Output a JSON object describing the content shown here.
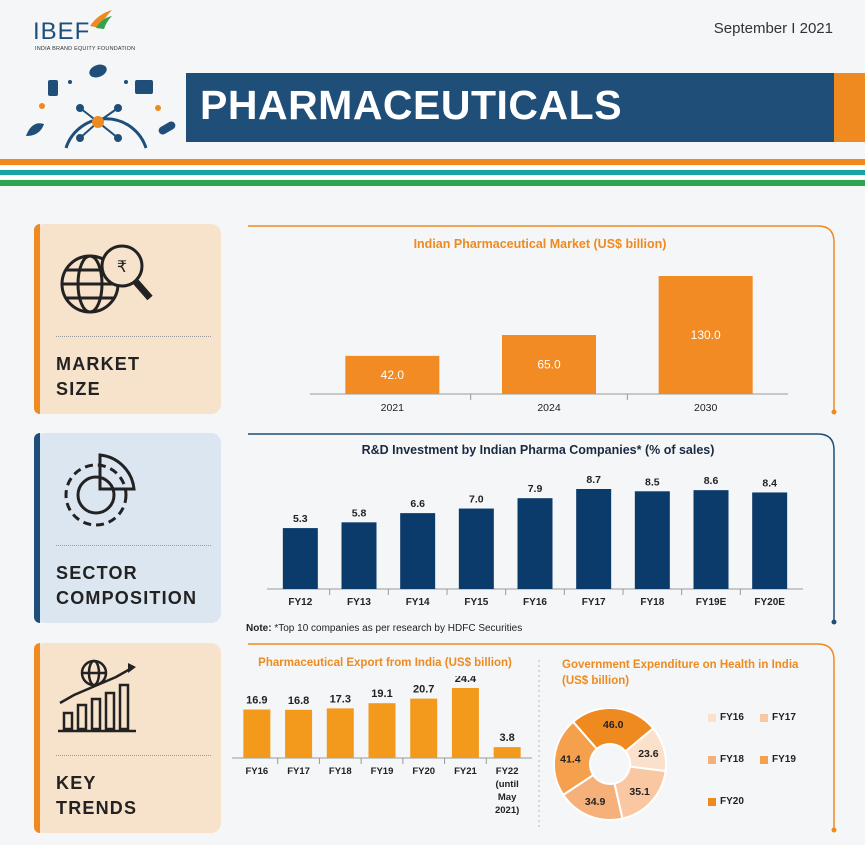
{
  "header": {
    "logo_text": "IBEF",
    "logo_subtext": "INDIA BRAND EQUITY FOUNDATION",
    "date": "September  I  2021",
    "title": "PHARMACEUTICALS"
  },
  "colors": {
    "navy": "#1f4e79",
    "orange": "#ee8a1f",
    "green": "#2ea44f",
    "teal": "#1aa3a3"
  },
  "sections": [
    {
      "label_line1": "MARKET",
      "label_line2": "SIZE",
      "icon": "globe-rupee-magnifier-icon"
    },
    {
      "label_line1": "SECTOR",
      "label_line2": "COMPOSITION",
      "icon": "gear-pie-icon"
    },
    {
      "label_line1": "KEY",
      "label_line2": "TRENDS",
      "icon": "globe-growth-chart-icon"
    }
  ],
  "notes": {
    "label": "Note:",
    "text": "*Top 10 companies as per research by HDFC Securities"
  },
  "chart_data": [
    {
      "type": "bar",
      "title": "Indian Pharmaceutical Market (US$ billion)",
      "categories": [
        "2021",
        "2024",
        "2030"
      ],
      "values": [
        42.0,
        65.0,
        130.0
      ],
      "value_labels": [
        "42.0",
        "65.0",
        "130.0"
      ],
      "ylim": [
        0,
        130
      ],
      "color": "#f28b24"
    },
    {
      "type": "bar",
      "title": "R&D Investment by Indian Pharma Companies* (% of sales)",
      "categories": [
        "FY12",
        "FY13",
        "FY14",
        "FY15",
        "FY16",
        "FY17",
        "FY18",
        "FY19E",
        "FY20E"
      ],
      "values": [
        5.3,
        5.8,
        6.6,
        7.0,
        7.9,
        8.7,
        8.5,
        8.6,
        8.4
      ],
      "value_labels": [
        "5.3",
        "5.8",
        "6.6",
        "7.0",
        "7.9",
        "8.7",
        "8.5",
        "8.6",
        "8.4"
      ],
      "ylim": [
        0,
        8.7
      ],
      "color": "#0b3b6b"
    },
    {
      "type": "bar",
      "title": "Pharmaceutical Export from India (US$ billion)",
      "categories": [
        "FY16",
        "FY17",
        "FY18",
        "FY19",
        "FY20",
        "FY21",
        "FY22 (until May 2021)"
      ],
      "category_lines": [
        [
          "FY16"
        ],
        [
          "FY17"
        ],
        [
          "FY18"
        ],
        [
          "FY19"
        ],
        [
          "FY20"
        ],
        [
          "FY21"
        ],
        [
          "FY22",
          "(until",
          "May",
          "2021)"
        ]
      ],
      "values": [
        16.9,
        16.8,
        17.3,
        19.1,
        20.7,
        24.4,
        3.8
      ],
      "value_labels": [
        "16.9",
        "16.8",
        "17.3",
        "19.1",
        "20.7",
        "24.4",
        "3.8"
      ],
      "ylim": [
        0,
        24.4
      ],
      "color": "#f39a1c"
    },
    {
      "type": "pie",
      "title": "Government Expenditure on Health in India (US$ billion)",
      "categories": [
        "FY16",
        "FY17",
        "FY18",
        "FY19",
        "FY20"
      ],
      "values": [
        23.6,
        35.1,
        34.9,
        41.4,
        46.0
      ],
      "value_labels": [
        "23.6",
        "35.1",
        "34.9",
        "41.4",
        "46.0"
      ],
      "colors": [
        "#fbe0cc",
        "#f9c8a3",
        "#f6b079",
        "#f5a04d",
        "#ee8a1f"
      ],
      "legend": "right"
    }
  ]
}
